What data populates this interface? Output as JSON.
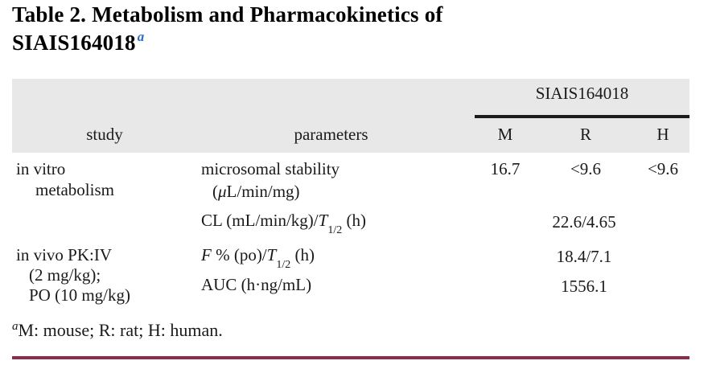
{
  "title": {
    "line1": "Table 2. Metabolism and Pharmacokinetics of",
    "line2_main": "SIAIS164018",
    "footnote_marker": "a"
  },
  "colors": {
    "accent_blue": "#2f6bc6",
    "header_band_gray": "#e8e8e8",
    "group_rule_black": "#1c1c1c",
    "bottom_rule_maroon": "#8e2b4f"
  },
  "table": {
    "group_header": "SIAIS164018",
    "column_headers": [
      "study",
      "parameters",
      "M",
      "R",
      "H"
    ],
    "body": {
      "row1": {
        "study": [
          "in vitro",
          "metabolism"
        ],
        "parameter": {
          "line1": "microsomal stability",
          "line2_prefix": "(",
          "line2_mu": "μ",
          "line2_suffix": "L/min/mg)"
        },
        "values": {
          "m": "16.7",
          "r": "<9.6",
          "h": "<9.6"
        }
      },
      "row2": {
        "parameter": {
          "prefix": "CL (mL/min/kg)/",
          "t": "T",
          "t_sub": "1/2",
          "suffix": " (h)"
        },
        "merged_value": "22.6/4.65"
      },
      "row3": {
        "study": [
          "in vivo PK:IV",
          "(2 mg/kg);",
          "PO (10 mg/kg)"
        ],
        "parameter": {
          "f": "F",
          "mid": " % (po)/",
          "t": "T",
          "t_sub": "1/2",
          "suffix": " (h)"
        },
        "merged_value": "18.4/7.1"
      },
      "row4": {
        "parameter": {
          "label": "AUC (h·ng/mL)"
        },
        "merged_value": "1556.1"
      }
    }
  },
  "footnote": {
    "marker": "a",
    "text": "M: mouse; R: rat; H: human."
  }
}
